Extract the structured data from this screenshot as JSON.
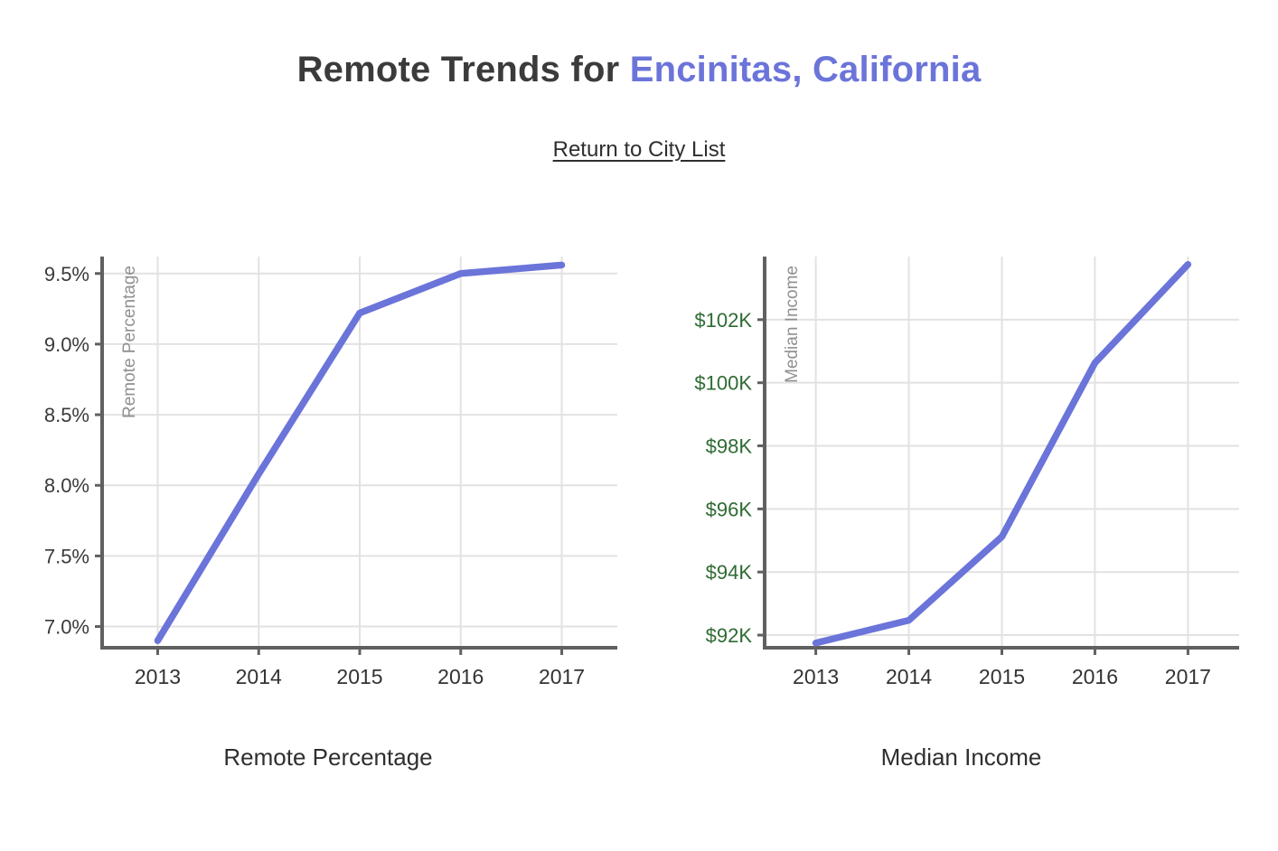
{
  "page": {
    "title_prefix": "Remote Trends for ",
    "title_city": "Encinitas, California",
    "link_label": "Return to City List"
  },
  "colors": {
    "accent": "#6b74d9",
    "line": "#6b74d9",
    "grid": "#e2e2e2",
    "axis": "#606060",
    "xtick_text": "#333333",
    "ylabel_text": "#909090",
    "green_tick": "#2f6b33",
    "dark_tick": "#3a3a3a"
  },
  "chart_data": [
    {
      "type": "line",
      "caption": "Remote Percentage",
      "ylabel": "Remote Percentage",
      "x": [
        2013,
        2014,
        2015,
        2016,
        2017
      ],
      "values": [
        6.9,
        8.08,
        9.22,
        9.5,
        9.56
      ],
      "yticks": [
        7.0,
        7.5,
        8.0,
        8.5,
        9.0,
        9.5
      ],
      "ytick_labels": [
        "7.0%",
        "7.5%",
        "8.0%",
        "8.5%",
        "9.0%",
        "9.5%"
      ],
      "ylim": [
        6.85,
        9.62
      ],
      "xlim": [
        2012.45,
        2017.55
      ],
      "ytick_color": "#3a3a3a",
      "legend": "none",
      "grid": true
    },
    {
      "type": "line",
      "caption": "Median Income",
      "ylabel": "Median Income",
      "x": [
        2013,
        2014,
        2015,
        2016,
        2017
      ],
      "values": [
        91750,
        92470,
        95120,
        100630,
        103750
      ],
      "yticks": [
        92000,
        94000,
        96000,
        98000,
        100000,
        102000
      ],
      "ytick_labels": [
        "$92K",
        "$94K",
        "$96K",
        "$98K",
        "$100K",
        "$102K"
      ],
      "ylim": [
        91600,
        104000
      ],
      "xlim": [
        2012.45,
        2017.55
      ],
      "ytick_color": "#2f6b33",
      "legend": "none",
      "grid": true
    }
  ]
}
